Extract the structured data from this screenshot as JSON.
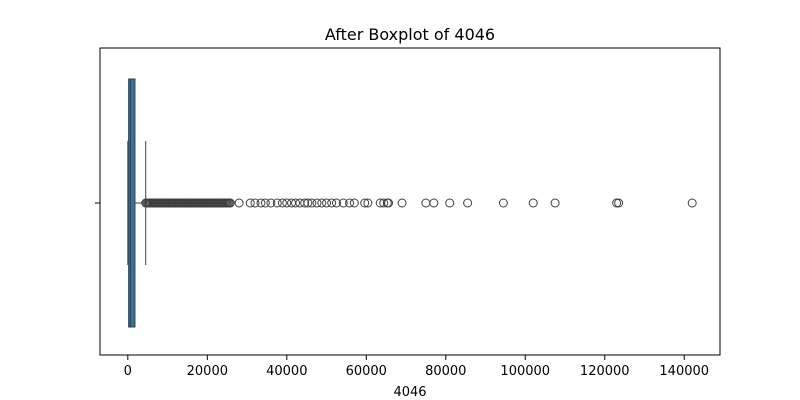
{
  "chart_data": {
    "type": "boxplot",
    "title": "After Boxplot of 4046",
    "xlabel": "4046",
    "ylabel": "",
    "orientation": "horizontal",
    "xlim": [
      -7000,
      149000
    ],
    "x_ticks": [
      0,
      20000,
      40000,
      60000,
      80000,
      100000,
      120000,
      140000
    ],
    "x_tick_labels": [
      "0",
      "20000",
      "40000",
      "60000",
      "80000",
      "100000",
      "120000",
      "140000"
    ],
    "grid": false,
    "legend": "none",
    "box": {
      "q1": 200,
      "median": 650,
      "q3": 1800,
      "whisker_low": 0,
      "whisker_high": 4500
    },
    "outliers_dense_range": [
      4500,
      26000
    ],
    "outliers": [
      28000,
      30800,
      32000,
      33500,
      34600,
      36000,
      37600,
      38900,
      40000,
      41200,
      42200,
      43300,
      44500,
      45300,
      46300,
      47600,
      48800,
      50000,
      51300,
      52500,
      54200,
      55800,
      57000,
      59600,
      60400,
      63500,
      64400,
      65300,
      65600,
      69000,
      75000,
      77000,
      81000,
      85500,
      94500,
      102000,
      107500,
      123000,
      123500,
      142000
    ],
    "colors": {
      "box_fill": "#3274a1",
      "lines": "#3f3f3f",
      "axes": "#000000"
    }
  }
}
